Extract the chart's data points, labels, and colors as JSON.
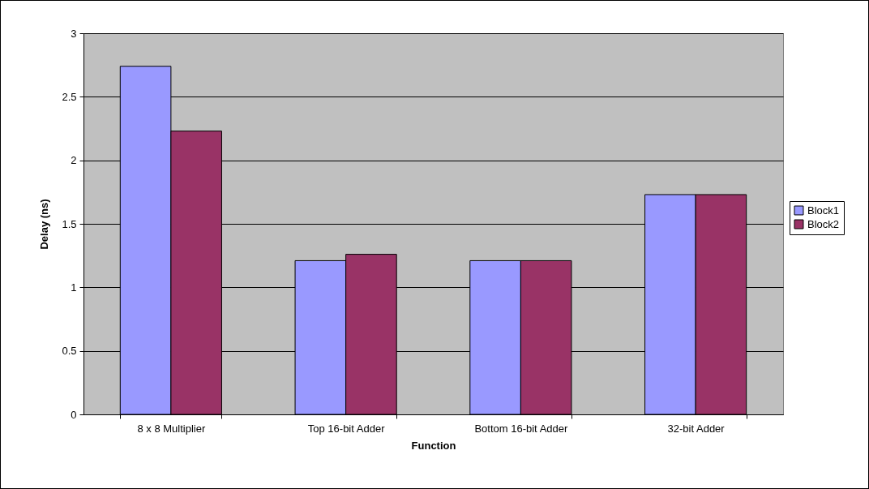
{
  "chart_data": {
    "type": "bar",
    "xlabel": "Function",
    "ylabel": "Delay (ns)",
    "categories": [
      "8 x 8 Multiplier",
      "Top 16-bit Adder",
      "Bottom 16-bit Adder",
      "32-bit Adder"
    ],
    "series": [
      {
        "name": "Block1",
        "color": "#9999ff",
        "values": [
          2.74,
          1.21,
          1.21,
          1.73
        ]
      },
      {
        "name": "Block2",
        "color": "#993366",
        "values": [
          2.23,
          1.26,
          1.21,
          1.73
        ]
      }
    ],
    "ylim": [
      0,
      3
    ],
    "yticks": [
      0,
      0.5,
      1,
      1.5,
      2,
      2.5,
      3
    ],
    "grid": "y",
    "legend": "right"
  }
}
